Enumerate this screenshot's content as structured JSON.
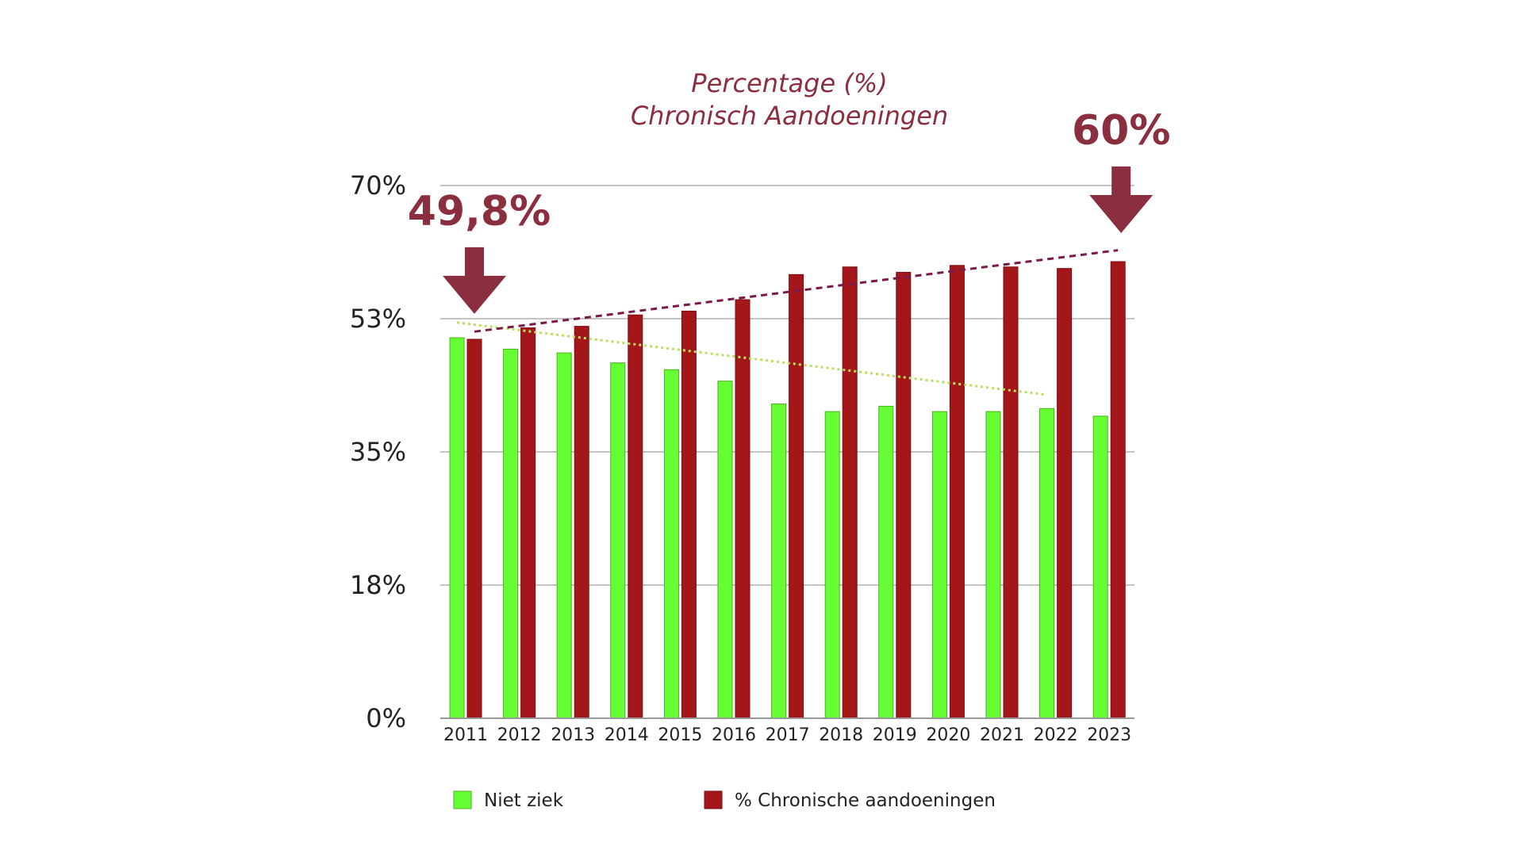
{
  "chart_data": {
    "type": "bar",
    "title_line1": "Percentage (%)",
    "title_line2": "Chronisch Aandoeningen",
    "categories": [
      "2011",
      "2012",
      "2013",
      "2014",
      "2015",
      "2016",
      "2017",
      "2018",
      "2019",
      "2020",
      "2021",
      "2022",
      "2023"
    ],
    "y_ticks": [
      "0%",
      "18%",
      "35%",
      "53%",
      "70%"
    ],
    "ylim": [
      0,
      70
    ],
    "grid": true,
    "legend_position": "bottom",
    "series": [
      {
        "name": "Niet ziek",
        "color": "#66ff33",
        "values": [
          50.0,
          48.5,
          48.0,
          46.7,
          45.8,
          44.3,
          41.3,
          40.3,
          41.0,
          40.3,
          40.3,
          40.7,
          39.7
        ]
      },
      {
        "name": "% Chronische aandoeningen",
        "color": "#a3161a",
        "values": [
          49.8,
          51.3,
          51.5,
          53.0,
          53.5,
          55.0,
          58.3,
          59.3,
          58.6,
          59.5,
          59.3,
          59.1,
          60.0
        ]
      }
    ],
    "trendlines": [
      {
        "series": "Niet ziek",
        "color": "#b8e05a",
        "style": "dotted",
        "from": [
          2011,
          52.0
        ],
        "to": [
          2022,
          42.5
        ]
      },
      {
        "series": "% Chronische aandoeningen",
        "color": "#7a1a4a",
        "style": "dashed",
        "from": [
          2011,
          50.8
        ],
        "to": [
          2023,
          61.5
        ]
      }
    ],
    "annotations": [
      {
        "text": "49,8%",
        "category": "2011",
        "arrow": true
      },
      {
        "text": "60%",
        "category": "2023",
        "arrow": true
      }
    ],
    "colors": {
      "title": "#8b2e3f",
      "arrow": "#8b2e3f",
      "grid": "#b0b0b0"
    }
  }
}
